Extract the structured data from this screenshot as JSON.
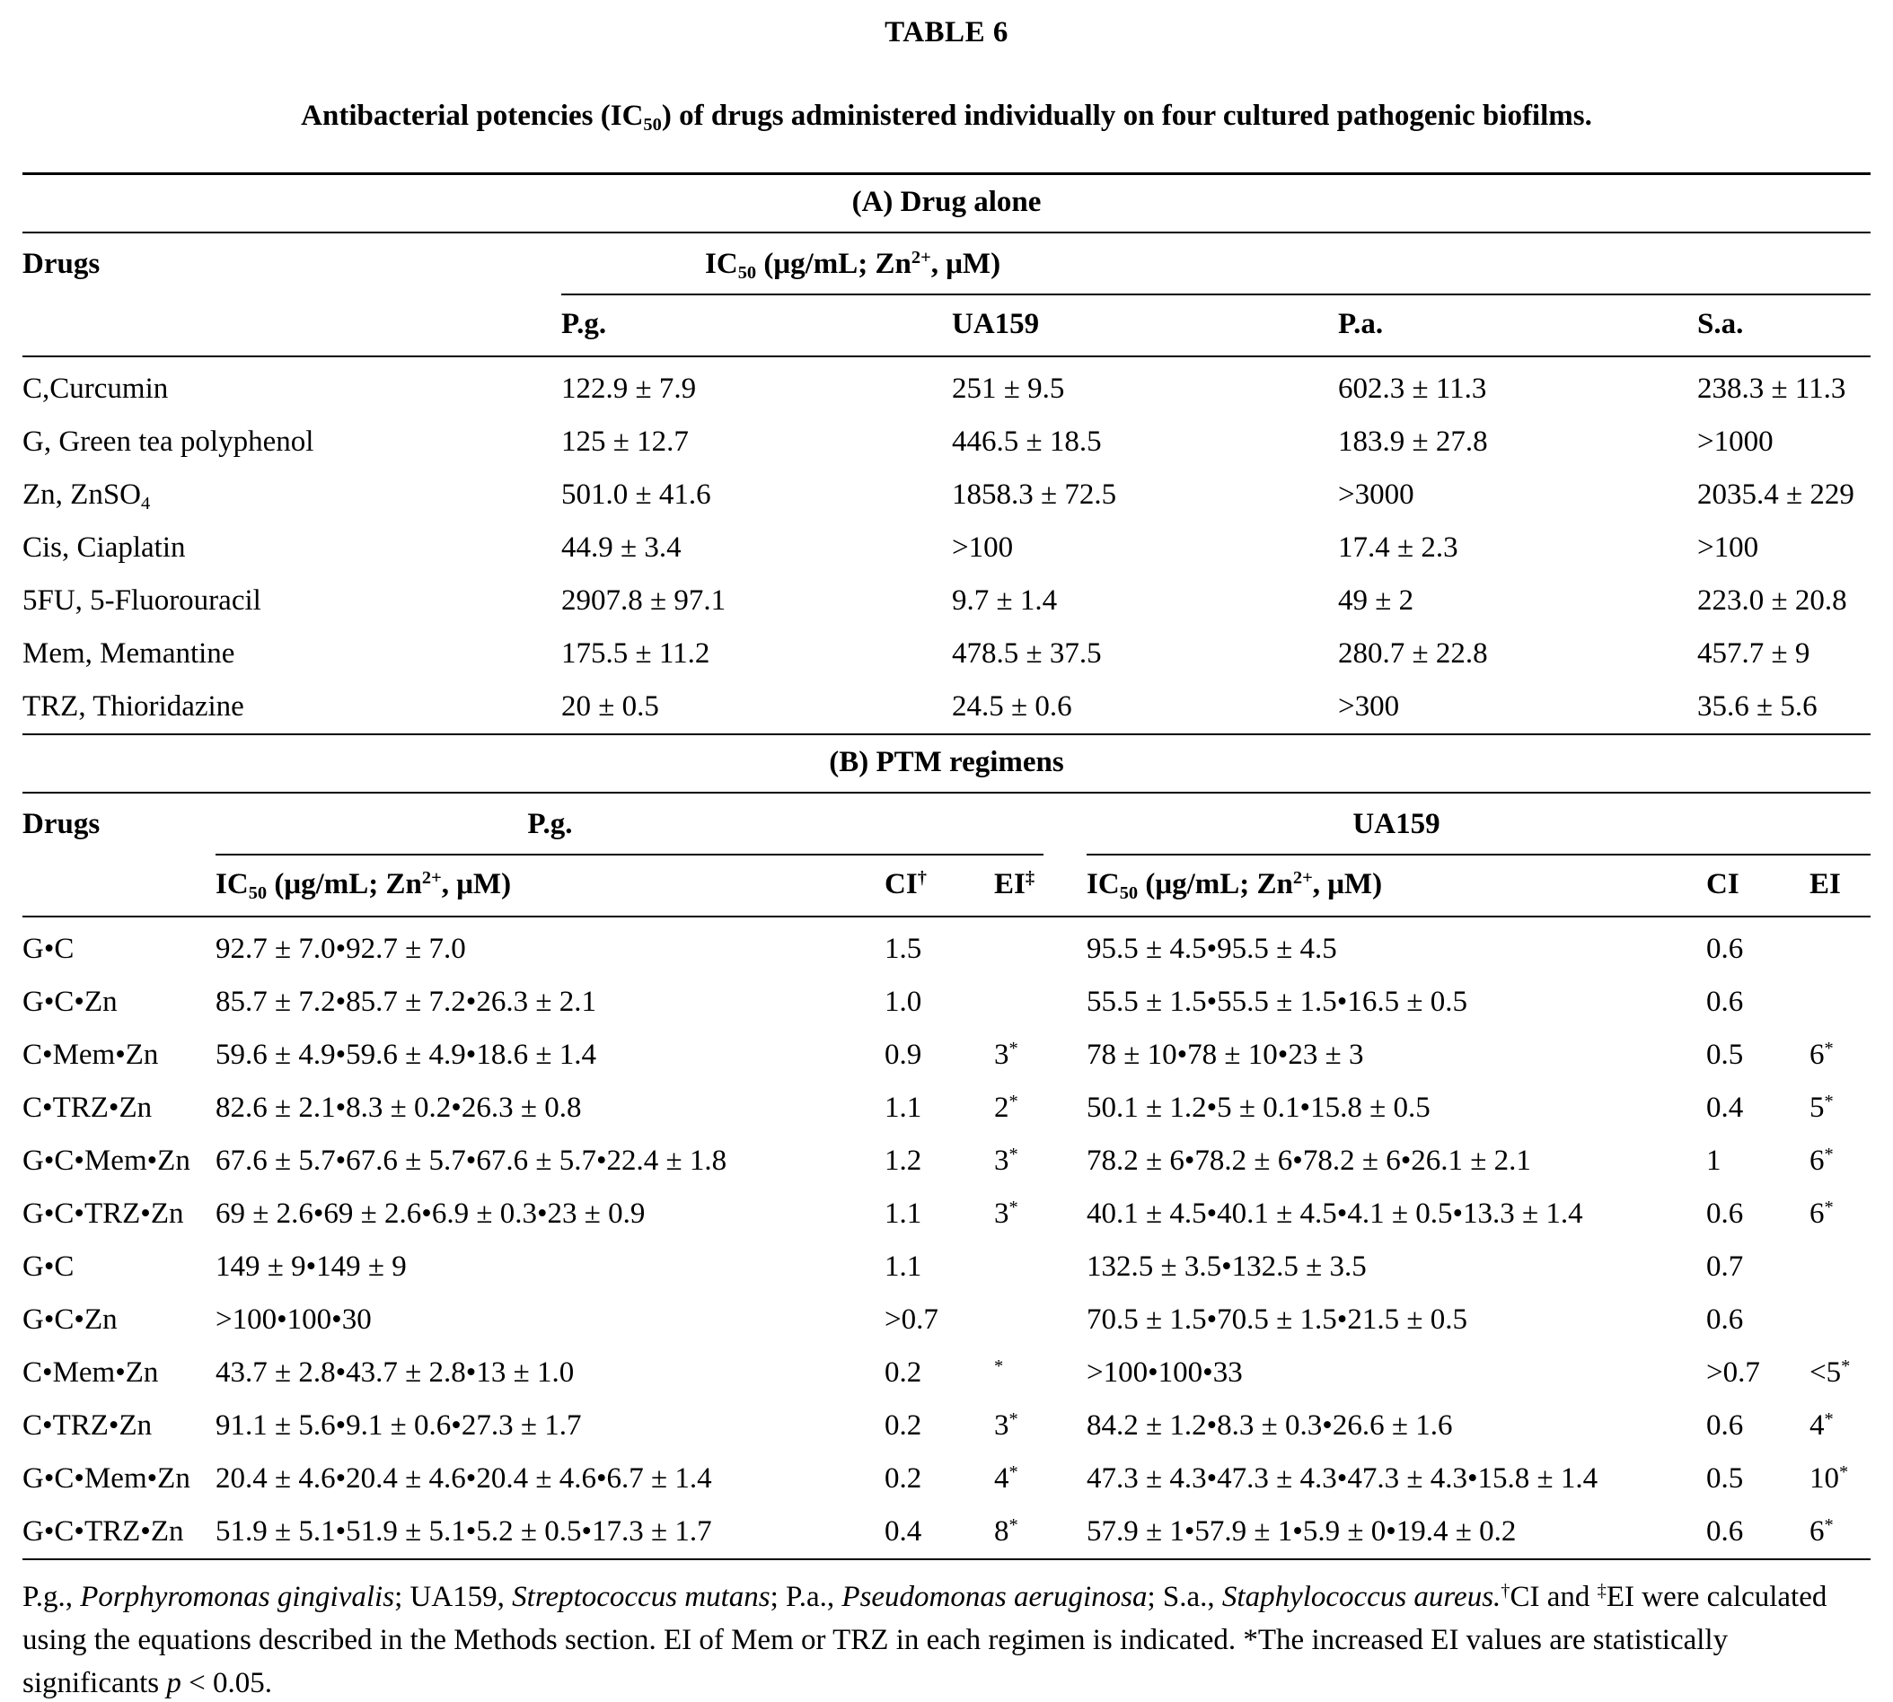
{
  "page": {
    "title": "TABLE 6",
    "caption": "Antibacterial potencies (IC~50~) of drugs administered individually on four cultured pathogenic biofilms."
  },
  "section_a": {
    "header": "(A) Drug alone",
    "drugs_col": "Drugs",
    "ic50_header": "IC~50~ (μg/mL; Zn^2+^, μM)",
    "columns": [
      "P.g.",
      "UA159",
      "P.a.",
      "S.a."
    ],
    "rows": [
      {
        "drug": "C,Curcumin",
        "values": [
          "122.9 ± 7.9",
          "251 ± 9.5",
          "602.3 ± 11.3",
          "238.3 ± 11.3"
        ]
      },
      {
        "drug": "G, Green tea polyphenol",
        "values": [
          "125 ± 12.7",
          "446.5 ± 18.5",
          "183.9 ± 27.8",
          ">1000"
        ]
      },
      {
        "drug": "Zn, ZnSO~4~",
        "values": [
          "501.0 ± 41.6",
          "1858.3 ± 72.5",
          ">3000",
          "2035.4 ± 229"
        ]
      },
      {
        "drug": "Cis, Ciaplatin",
        "values": [
          "44.9 ± 3.4",
          ">100",
          "17.4 ± 2.3",
          ">100"
        ]
      },
      {
        "drug": "5FU, 5-Fluorouracil",
        "values": [
          "2907.8 ± 97.1",
          "9.7 ± 1.4",
          "49 ± 2",
          "223.0 ± 20.8"
        ]
      },
      {
        "drug": "Mem, Memantine",
        "values": [
          "175.5 ± 11.2",
          "478.5 ± 37.5",
          "280.7 ± 22.8",
          "457.7 ± 9"
        ]
      },
      {
        "drug": "TRZ, Thioridazine",
        "values": [
          "20 ± 0.5",
          "24.5 ± 0.6",
          ">300",
          "35.6 ± 5.6"
        ]
      }
    ]
  },
  "section_b": {
    "header": "(B) PTM regimens",
    "drugs_col": "Drugs",
    "groups": [
      {
        "name": "P.g.",
        "columns": [
          "IC~50~ (μg/mL; Zn^2+^, μM)",
          "CI^†^",
          "EI^‡^"
        ]
      },
      {
        "name": "UA159",
        "columns": [
          "IC~50~ (μg/mL; Zn^2+^, μM)",
          "CI",
          "EI"
        ]
      }
    ],
    "rows": [
      {
        "drug": "G•C",
        "pg": [
          "92.7 ± 7.0•92.7 ± 7.0",
          "1.5",
          ""
        ],
        "ua159": [
          "95.5 ± 4.5•95.5 ± 4.5",
          "0.6",
          ""
        ]
      },
      {
        "drug": "G•C•Zn",
        "pg": [
          "85.7 ± 7.2•85.7 ± 7.2•26.3 ± 2.1",
          "1.0",
          ""
        ],
        "ua159": [
          "55.5 ± 1.5•55.5 ± 1.5•16.5 ± 0.5",
          "0.6",
          ""
        ]
      },
      {
        "drug": "C•Mem•Zn",
        "pg": [
          "59.6 ± 4.9•59.6 ± 4.9•18.6 ± 1.4",
          "0.9",
          "3^*^"
        ],
        "ua159": [
          "78 ± 10•78 ± 10•23 ± 3",
          "0.5",
          "6^*^"
        ]
      },
      {
        "drug": "C•TRZ•Zn",
        "pg": [
          "82.6 ± 2.1•8.3 ± 0.2•26.3 ± 0.8",
          "1.1",
          "2^*^"
        ],
        "ua159": [
          "50.1 ± 1.2•5 ± 0.1•15.8 ± 0.5",
          "0.4",
          "5^*^"
        ]
      },
      {
        "drug": "G•C•Mem•Zn",
        "pg": [
          "67.6 ± 5.7•67.6 ± 5.7•67.6 ± 5.7•22.4 ± 1.8",
          "1.2",
          "3^*^"
        ],
        "ua159": [
          "78.2 ± 6•78.2 ± 6•78.2 ± 6•26.1 ± 2.1",
          "1",
          "6^*^"
        ]
      },
      {
        "drug": "G•C•TRZ•Zn",
        "pg": [
          "69 ± 2.6•69 ± 2.6•6.9 ± 0.3•23 ± 0.9",
          "1.1",
          "3^*^"
        ],
        "ua159": [
          "40.1 ± 4.5•40.1 ± 4.5•4.1 ± 0.5•13.3 ± 1.4",
          "0.6",
          "6^*^"
        ]
      },
      {
        "drug": "G•C",
        "pg": [
          "149 ± 9•149 ± 9",
          "1.1",
          ""
        ],
        "ua159": [
          "132.5 ± 3.5•132.5 ± 3.5",
          "0.7",
          ""
        ]
      },
      {
        "drug": "G•C•Zn",
        "pg": [
          ">100•100•30",
          ">0.7",
          ""
        ],
        "ua159": [
          "70.5 ± 1.5•70.5 ± 1.5•21.5 ± 0.5",
          "0.6",
          ""
        ]
      },
      {
        "drug": "C•Mem•Zn",
        "pg": [
          "43.7 ± 2.8•43.7 ± 2.8•13 ± 1.0",
          "0.2",
          "^*^"
        ],
        "ua159": [
          ">100•100•33",
          ">0.7",
          "<5^*^"
        ]
      },
      {
        "drug": "C•TRZ•Zn",
        "pg": [
          "91.1 ± 5.6•9.1 ± 0.6•27.3 ± 1.7",
          "0.2",
          "3^*^"
        ],
        "ua159": [
          "84.2 ± 1.2•8.3 ± 0.3•26.6 ± 1.6",
          "0.6",
          "4^*^"
        ]
      },
      {
        "drug": "G•C•Mem•Zn",
        "pg": [
          "20.4 ± 4.6•20.4 ± 4.6•20.4 ± 4.6•6.7 ± 1.4",
          "0.2",
          "4^*^"
        ],
        "ua159": [
          "47.3 ± 4.3•47.3 ± 4.3•47.3 ± 4.3•15.8 ± 1.4",
          "0.5",
          "10^*^"
        ]
      },
      {
        "drug": "G•C•TRZ•Zn",
        "pg": [
          "51.9 ± 5.1•51.9 ± 5.1•5.2 ± 0.5•17.3 ± 1.7",
          "0.4",
          "8^*^"
        ],
        "ua159": [
          "57.9 ± 1•57.9 ± 1•5.9 ± 0•19.4 ± 0.2",
          "0.6",
          "6^*^"
        ]
      }
    ]
  },
  "footnote": "P.g., _Porphyromonas gingivalis_; UA159, _Streptococcus mutans_; P.a., _Pseudomonas aeruginosa_; S.a., _Staphylococcus aureus._^†^CI and ^‡^EI were calculated using the equations described in the Methods section. EI of Mem or TRZ in each regimen is indicated. *The increased EI values are statistically significants _p_ < 0.05."
}
